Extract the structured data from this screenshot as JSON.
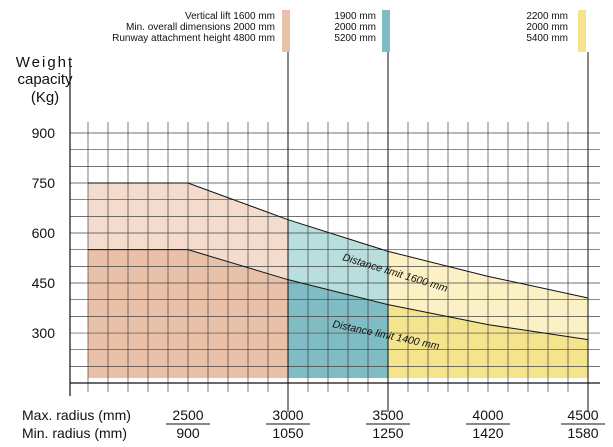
{
  "chart_data": {
    "type": "area",
    "y_title": [
      "Weight",
      "capacity",
      "(Kg)"
    ],
    "y_ticks": [
      300,
      450,
      600,
      750,
      900
    ],
    "y_range": [
      150,
      1000
    ],
    "x_rows": [
      {
        "label": "Max. radius (mm)",
        "ticks": [
          2500,
          3000,
          3500,
          4000,
          4500
        ]
      },
      {
        "label": "Min. radius (mm)",
        "ticks": [
          900,
          1050,
          1250,
          1420,
          1580
        ]
      }
    ],
    "x_range": [
      2000,
      4500
    ],
    "zones": [
      {
        "x_range": [
          2000,
          3000
        ],
        "color_light": "#f3dccd",
        "color_dark": "#e9c0a8",
        "specs": [
          "Vertical lift  1600 mm",
          "Min. overall dimensions 2000 mm",
          "Runway attachment height 4800 mm"
        ]
      },
      {
        "x_range": [
          3000,
          3500
        ],
        "color_light": "#b9dede",
        "color_dark": "#7fbcc3",
        "specs": [
          "1900 mm",
          "2000 mm",
          "5200 mm"
        ]
      },
      {
        "x_range": [
          3500,
          4500
        ],
        "color_light": "#fbf1c4",
        "color_dark": "#f4e48e",
        "specs": [
          "2200 mm",
          "2000 mm",
          "5400 mm"
        ]
      }
    ],
    "series": [
      {
        "name": "Distance limit 1600 mm",
        "x": [
          2000,
          2500,
          3000,
          3500,
          4000,
          4500
        ],
        "y": [
          750,
          750,
          640,
          545,
          470,
          405
        ]
      },
      {
        "name": "Distance limit 1400 mm",
        "x": [
          2000,
          2500,
          3000,
          3500,
          4000,
          4500
        ],
        "y": [
          550,
          550,
          460,
          385,
          325,
          280
        ]
      }
    ],
    "grid": true
  }
}
